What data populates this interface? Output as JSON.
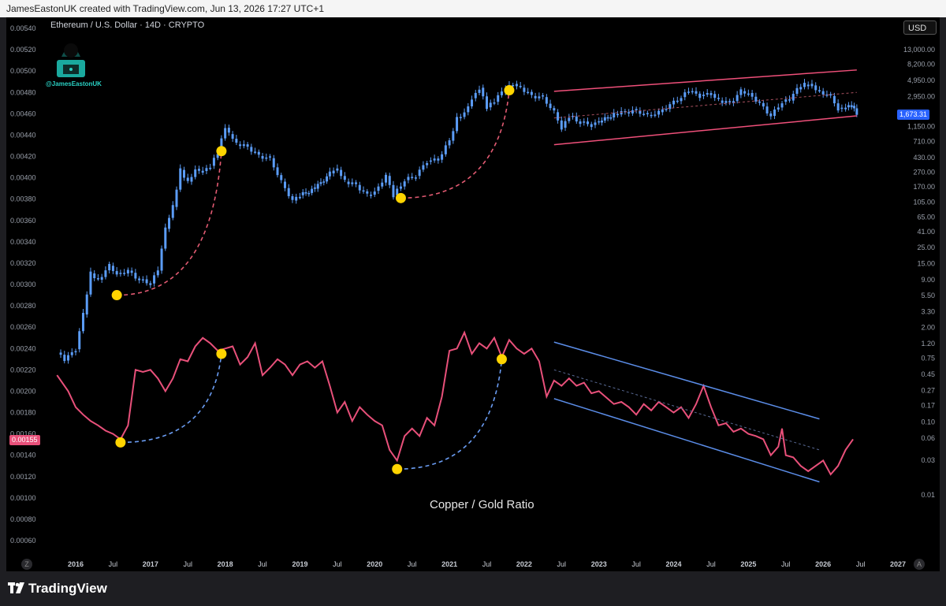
{
  "header": {
    "credit": "JamesEastonUK created with TradingView.com, Jun 13, 2026 17:27 UTC+1"
  },
  "chart": {
    "symbol_line": "Ethereum / U.S. Dollar · 14D · CRYPTO",
    "watermark_handle": "@JamesEastonUK",
    "currency_button": "USD",
    "ratio_label": "Copper / Gold Ratio",
    "eth_last_price": "1,673.31",
    "ratio_last_value": "0.00155",
    "corner_left": "Z",
    "corner_right": "A"
  },
  "footer": {
    "brand": "TradingView"
  },
  "colors": {
    "eth_candles": "#5b9cf6",
    "copper_gold_line": "#e8507a",
    "eth_channel": "#f0507a",
    "ratio_channel": "#5b8de8",
    "markers": "#ffd400"
  },
  "chart_data": {
    "type": "line",
    "x_ticks": [
      "2016",
      "Jul",
      "2017",
      "Jul",
      "2018",
      "Jul",
      "2019",
      "Jul",
      "2020",
      "Jul",
      "2021",
      "Jul",
      "2022",
      "Jul",
      "2023",
      "Jul",
      "2024",
      "Jul",
      "2025",
      "Jul",
      "2026",
      "Jul",
      "2027"
    ],
    "left_axis_ticks": [
      "0.00540",
      "0.00520",
      "0.00500",
      "0.00480",
      "0.00460",
      "0.00440",
      "0.00420",
      "0.00400",
      "0.00380",
      "0.00360",
      "0.00340",
      "0.00320",
      "0.00300",
      "0.00280",
      "0.00260",
      "0.00240",
      "0.00220",
      "0.00200",
      "0.00180",
      "0.00160",
      "0.00140",
      "0.00120",
      "0.00100",
      "0.00080",
      "0.00060"
    ],
    "right_axis_ticks": [
      "13,000.00",
      "8,200.00",
      "4,950.00",
      "2,950.00",
      "1,150.00",
      "710.00",
      "430.00",
      "270.00",
      "170.00",
      "105.00",
      "65.00",
      "41.00",
      "25.00",
      "15.00",
      "9.00",
      "5.50",
      "3.30",
      "2.00",
      "1.20",
      "0.75",
      "0.45",
      "0.27",
      "0.17",
      "0.10",
      "0.06",
      "0.03",
      "0.01"
    ],
    "ylim_left": [
      0.0006,
      0.0054
    ],
    "y_scale_right": "log",
    "series": [
      {
        "name": "Ethereum / U.S. Dollar",
        "style": "candles",
        "points": [
          [
            2015.75,
            0.9
          ],
          [
            2015.85,
            0.7
          ],
          [
            2016.0,
            1.0
          ],
          [
            2016.1,
            3.0
          ],
          [
            2016.2,
            11
          ],
          [
            2016.3,
            9
          ],
          [
            2016.45,
            14
          ],
          [
            2016.55,
            11
          ],
          [
            2016.7,
            12
          ],
          [
            2016.85,
            9
          ],
          [
            2017.0,
            8
          ],
          [
            2017.1,
            12
          ],
          [
            2017.2,
            45
          ],
          [
            2017.3,
            90
          ],
          [
            2017.4,
            290
          ],
          [
            2017.5,
            200
          ],
          [
            2017.6,
            300
          ],
          [
            2017.7,
            280
          ],
          [
            2017.8,
            330
          ],
          [
            2017.9,
            500
          ],
          [
            2018.0,
            1100
          ],
          [
            2018.05,
            900
          ],
          [
            2018.15,
            650
          ],
          [
            2018.3,
            600
          ],
          [
            2018.45,
            450
          ],
          [
            2018.6,
            420
          ],
          [
            2018.75,
            200
          ],
          [
            2018.9,
            110
          ],
          [
            2019.0,
            130
          ],
          [
            2019.2,
            160
          ],
          [
            2019.4,
            260
          ],
          [
            2019.5,
            290
          ],
          [
            2019.6,
            200
          ],
          [
            2019.75,
            180
          ],
          [
            2019.9,
            130
          ],
          [
            2020.0,
            150
          ],
          [
            2020.15,
            240
          ],
          [
            2020.25,
            130
          ],
          [
            2020.4,
            210
          ],
          [
            2020.55,
            240
          ],
          [
            2020.7,
            380
          ],
          [
            2020.85,
            400
          ],
          [
            2021.0,
            730
          ],
          [
            2021.1,
            1500
          ],
          [
            2021.2,
            1800
          ],
          [
            2021.3,
            2800
          ],
          [
            2021.4,
            3900
          ],
          [
            2021.5,
            2100
          ],
          [
            2021.6,
            2500
          ],
          [
            2021.7,
            3400
          ],
          [
            2021.85,
            4400
          ],
          [
            2021.95,
            3900
          ],
          [
            2022.1,
            3000
          ],
          [
            2022.25,
            2900
          ],
          [
            2022.4,
            1800
          ],
          [
            2022.5,
            1100
          ],
          [
            2022.6,
            1600
          ],
          [
            2022.75,
            1300
          ],
          [
            2022.9,
            1200
          ],
          [
            2023.0,
            1300
          ],
          [
            2023.2,
            1700
          ],
          [
            2023.35,
            1800
          ],
          [
            2023.5,
            1900
          ],
          [
            2023.65,
            1650
          ],
          [
            2023.8,
            1800
          ],
          [
            2023.95,
            2300
          ],
          [
            2024.1,
            2900
          ],
          [
            2024.2,
            3500
          ],
          [
            2024.35,
            3000
          ],
          [
            2024.5,
            3200
          ],
          [
            2024.6,
            2600
          ],
          [
            2024.75,
            2400
          ],
          [
            2024.9,
            3500
          ],
          [
            2025.0,
            3300
          ],
          [
            2025.15,
            2400
          ],
          [
            2025.3,
            1600
          ],
          [
            2025.45,
            2500
          ],
          [
            2025.55,
            2600
          ],
          [
            2025.65,
            3700
          ],
          [
            2025.75,
            4300
          ],
          [
            2025.85,
            4200
          ],
          [
            2025.95,
            3500
          ],
          [
            2026.1,
            3000
          ],
          [
            2026.2,
            2000
          ],
          [
            2026.3,
            2100
          ],
          [
            2026.38,
            2200
          ],
          [
            2026.45,
            1673.31
          ]
        ]
      },
      {
        "name": "Copper / Gold Ratio",
        "style": "line",
        "points": [
          [
            2015.75,
            0.00215
          ],
          [
            2015.9,
            0.002
          ],
          [
            2016.0,
            0.00185
          ],
          [
            2016.1,
            0.00178
          ],
          [
            2016.2,
            0.00172
          ],
          [
            2016.3,
            0.00168
          ],
          [
            2016.4,
            0.00163
          ],
          [
            2016.5,
            0.0016
          ],
          [
            2016.6,
            0.00155
          ],
          [
            2016.7,
            0.00168
          ],
          [
            2016.8,
            0.0022
          ],
          [
            2016.9,
            0.00218
          ],
          [
            2017.0,
            0.0022
          ],
          [
            2017.1,
            0.00212
          ],
          [
            2017.2,
            0.002
          ],
          [
            2017.3,
            0.00212
          ],
          [
            2017.4,
            0.0023
          ],
          [
            2017.5,
            0.00228
          ],
          [
            2017.6,
            0.00242
          ],
          [
            2017.7,
            0.0025
          ],
          [
            2017.8,
            0.00245
          ],
          [
            2017.9,
            0.00238
          ],
          [
            2018.0,
            0.0024
          ],
          [
            2018.1,
            0.00242
          ],
          [
            2018.2,
            0.00225
          ],
          [
            2018.3,
            0.00232
          ],
          [
            2018.4,
            0.00245
          ],
          [
            2018.5,
            0.00215
          ],
          [
            2018.6,
            0.00222
          ],
          [
            2018.7,
            0.0023
          ],
          [
            2018.8,
            0.00225
          ],
          [
            2018.9,
            0.00215
          ],
          [
            2019.0,
            0.00225
          ],
          [
            2019.1,
            0.00228
          ],
          [
            2019.2,
            0.00222
          ],
          [
            2019.3,
            0.00228
          ],
          [
            2019.4,
            0.00205
          ],
          [
            2019.5,
            0.0018
          ],
          [
            2019.6,
            0.0019
          ],
          [
            2019.7,
            0.00172
          ],
          [
            2019.8,
            0.00185
          ],
          [
            2019.9,
            0.00178
          ],
          [
            2020.0,
            0.00172
          ],
          [
            2020.1,
            0.00168
          ],
          [
            2020.2,
            0.00145
          ],
          [
            2020.3,
            0.00135
          ],
          [
            2020.4,
            0.00158
          ],
          [
            2020.5,
            0.00165
          ],
          [
            2020.6,
            0.00158
          ],
          [
            2020.7,
            0.00175
          ],
          [
            2020.8,
            0.00168
          ],
          [
            2020.9,
            0.00195
          ],
          [
            2021.0,
            0.00238
          ],
          [
            2021.1,
            0.0024
          ],
          [
            2021.2,
            0.00255
          ],
          [
            2021.3,
            0.00235
          ],
          [
            2021.4,
            0.00245
          ],
          [
            2021.5,
            0.0024
          ],
          [
            2021.6,
            0.0025
          ],
          [
            2021.7,
            0.00232
          ],
          [
            2021.8,
            0.00248
          ],
          [
            2021.9,
            0.0024
          ],
          [
            2022.0,
            0.00235
          ],
          [
            2022.1,
            0.0024
          ],
          [
            2022.2,
            0.00228
          ],
          [
            2022.3,
            0.00195
          ],
          [
            2022.4,
            0.0021
          ],
          [
            2022.5,
            0.00205
          ],
          [
            2022.6,
            0.00212
          ],
          [
            2022.7,
            0.00205
          ],
          [
            2022.8,
            0.00208
          ],
          [
            2022.9,
            0.00198
          ],
          [
            2023.0,
            0.002
          ],
          [
            2023.1,
            0.00194
          ],
          [
            2023.2,
            0.00188
          ],
          [
            2023.3,
            0.0019
          ],
          [
            2023.4,
            0.00185
          ],
          [
            2023.5,
            0.00178
          ],
          [
            2023.6,
            0.00188
          ],
          [
            2023.7,
            0.00182
          ],
          [
            2023.8,
            0.0019
          ],
          [
            2023.9,
            0.00185
          ],
          [
            2024.0,
            0.0018
          ],
          [
            2024.1,
            0.00185
          ],
          [
            2024.2,
            0.00175
          ],
          [
            2024.3,
            0.00188
          ],
          [
            2024.4,
            0.00205
          ],
          [
            2024.5,
            0.00185
          ],
          [
            2024.6,
            0.00168
          ],
          [
            2024.7,
            0.0017
          ],
          [
            2024.8,
            0.00162
          ],
          [
            2024.9,
            0.00165
          ],
          [
            2025.0,
            0.0016
          ],
          [
            2025.1,
            0.00158
          ],
          [
            2025.2,
            0.00155
          ],
          [
            2025.3,
            0.0014
          ],
          [
            2025.4,
            0.00148
          ],
          [
            2025.45,
            0.00165
          ],
          [
            2025.5,
            0.0014
          ],
          [
            2025.6,
            0.00138
          ],
          [
            2025.7,
            0.0013
          ],
          [
            2025.8,
            0.00125
          ],
          [
            2025.9,
            0.0013
          ],
          [
            2026.0,
            0.00135
          ],
          [
            2026.1,
            0.00122
          ],
          [
            2026.2,
            0.0013
          ],
          [
            2026.3,
            0.00145
          ],
          [
            2026.4,
            0.00155
          ]
        ]
      }
    ],
    "markers": {
      "eth_bottoms": [
        [
          2016.55,
          0.0029
        ],
        [
          2017.95,
          0.00425
        ],
        [
          2020.35,
          0.00381
        ],
        [
          2021.8,
          0.00482
        ]
      ],
      "ratio_bottoms": [
        [
          2016.6,
          0.00152
        ],
        [
          2017.95,
          0.00235
        ],
        [
          2020.3,
          0.00127
        ],
        [
          2021.7,
          0.0023
        ]
      ]
    }
  }
}
